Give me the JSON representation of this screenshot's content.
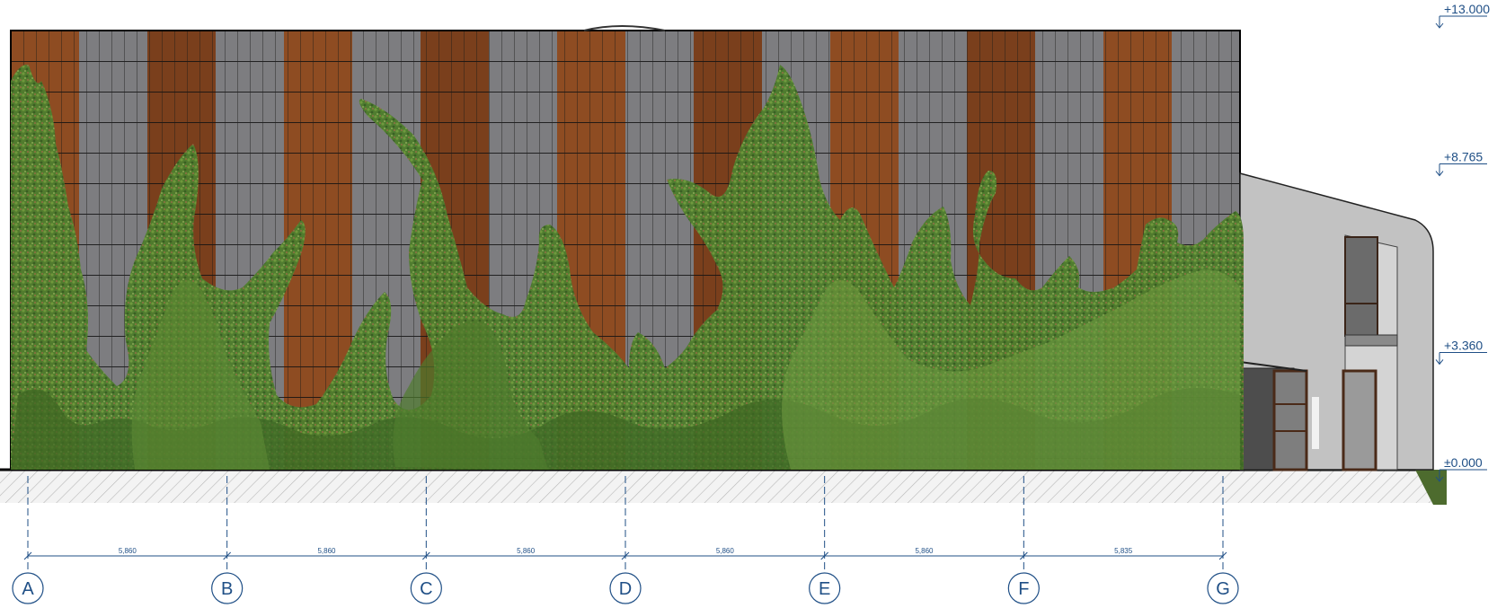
{
  "elevation": {
    "levels": [
      {
        "label": "+13.000",
        "value": 13.0
      },
      {
        "label": "+8.765",
        "value": 8.765
      },
      {
        "label": "+3.360",
        "value": 3.36
      },
      {
        "label": "±0.000",
        "value": 0.0
      }
    ],
    "grid_axes": [
      "A",
      "B",
      "C",
      "D",
      "E",
      "F",
      "G"
    ],
    "bay_dimensions": [
      "5,860",
      "5,860",
      "5,860",
      "5,860",
      "5,860",
      "5,835"
    ],
    "facade_panel_pattern": [
      "wood",
      "gray",
      "wood",
      "gray",
      "wood",
      "gray",
      "wood",
      "gray",
      "wood",
      "gray",
      "wood",
      "gray",
      "wood",
      "gray",
      "wood",
      "gray",
      "wood",
      "gray"
    ],
    "colors": {
      "wood": "#7a3f1c",
      "wood_light": "#8e4c22",
      "gray_panel": "#7d7d80",
      "ivy_dark": "#3f6b26",
      "ivy_mid": "#5f8e36",
      "ivy_light": "#84a84a",
      "annex_wall": "#bdbdbd",
      "annex_wall_light": "#d2d2d2",
      "annotation": "#1f4f86",
      "ground_hatch": "#bfbfbf"
    }
  }
}
